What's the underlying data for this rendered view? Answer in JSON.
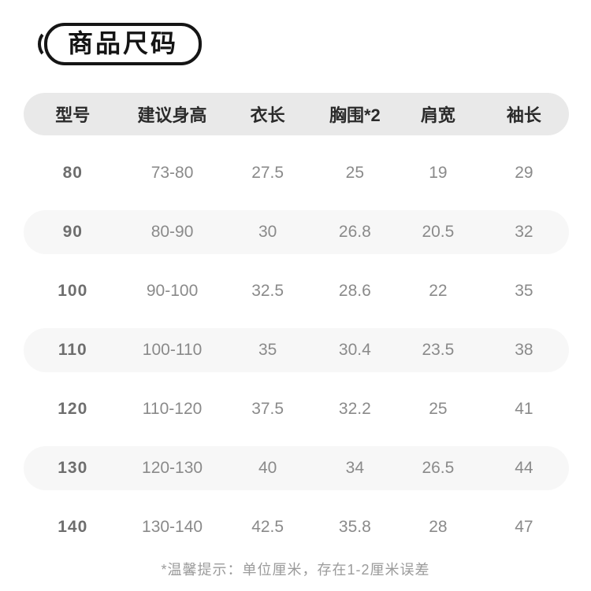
{
  "chart_data": {
    "type": "table",
    "title": "商品尺码",
    "columns": [
      "型号",
      "建议身高",
      "衣长",
      "胸围*2",
      "肩宽",
      "袖长"
    ],
    "rows": [
      [
        "80",
        "73-80",
        "27.5",
        "25",
        "19",
        "29"
      ],
      [
        "90",
        "80-90",
        "30",
        "26.8",
        "20.5",
        "32"
      ],
      [
        "100",
        "90-100",
        "32.5",
        "28.6",
        "22",
        "35"
      ],
      [
        "110",
        "100-110",
        "35",
        "30.4",
        "23.5",
        "38"
      ],
      [
        "120",
        "110-120",
        "37.5",
        "32.2",
        "25",
        "41"
      ],
      [
        "130",
        "120-130",
        "40",
        "34",
        "26.5",
        "44"
      ],
      [
        "140",
        "130-140",
        "42.5",
        "35.8",
        "28",
        "47"
      ]
    ],
    "note": "*温馨提示：单位厘米，存在1-2厘米误差",
    "layout": "alternating row stripes, rounded pill rows, header stripe darker"
  },
  "colors": {
    "header_bg": "#e9e9e9",
    "alt_row_bg": "#f7f7f7",
    "header_text": "#2a2a2a",
    "cell_text": "#8a8a8a",
    "model_col_text": "#6e6e6e",
    "badge_border": "#151515",
    "note_text": "#9b9b9b"
  }
}
